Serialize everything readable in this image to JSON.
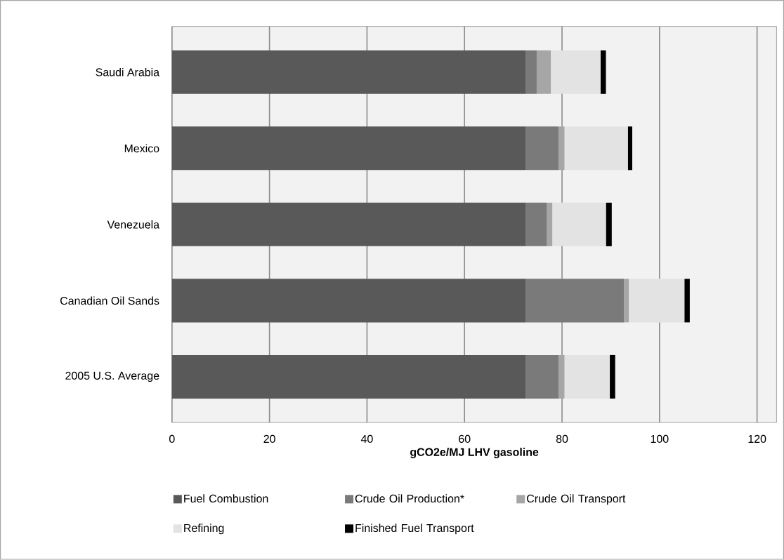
{
  "chart_data": {
    "type": "bar",
    "orientation": "horizontal",
    "stacked": true,
    "categories": [
      "Saudi Arabia",
      "Mexico",
      "Venezuela",
      "Canadian Oil Sands",
      "2005 U.S. Average"
    ],
    "series": [
      {
        "name": "Fuel Combustion",
        "color": "#595959",
        "values": [
          72.5,
          72.5,
          72.5,
          72.5,
          72.5
        ]
      },
      {
        "name": "Crude Oil Production*",
        "color": "#7a7a7a",
        "values": [
          2.3,
          6.8,
          4.4,
          20.2,
          6.8
        ]
      },
      {
        "name": "Crude Oil Transport",
        "color": "#a6a6a6",
        "values": [
          2.9,
          1.2,
          1.1,
          1.0,
          1.2
        ]
      },
      {
        "name": "Refining",
        "color": "#e3e3e3",
        "values": [
          10.2,
          13.0,
          11.0,
          11.4,
          9.3
        ]
      },
      {
        "name": "Finished Fuel Transport",
        "color": "#000000",
        "values": [
          1.1,
          0.9,
          1.2,
          1.1,
          1.1
        ]
      }
    ],
    "xlabel": "gCO2e/MJ LHV gasoline",
    "xlim": [
      0,
      124
    ],
    "xticks": [
      0,
      20,
      40,
      60,
      80,
      100,
      120
    ],
    "grid": "x",
    "legend": "bottom"
  }
}
